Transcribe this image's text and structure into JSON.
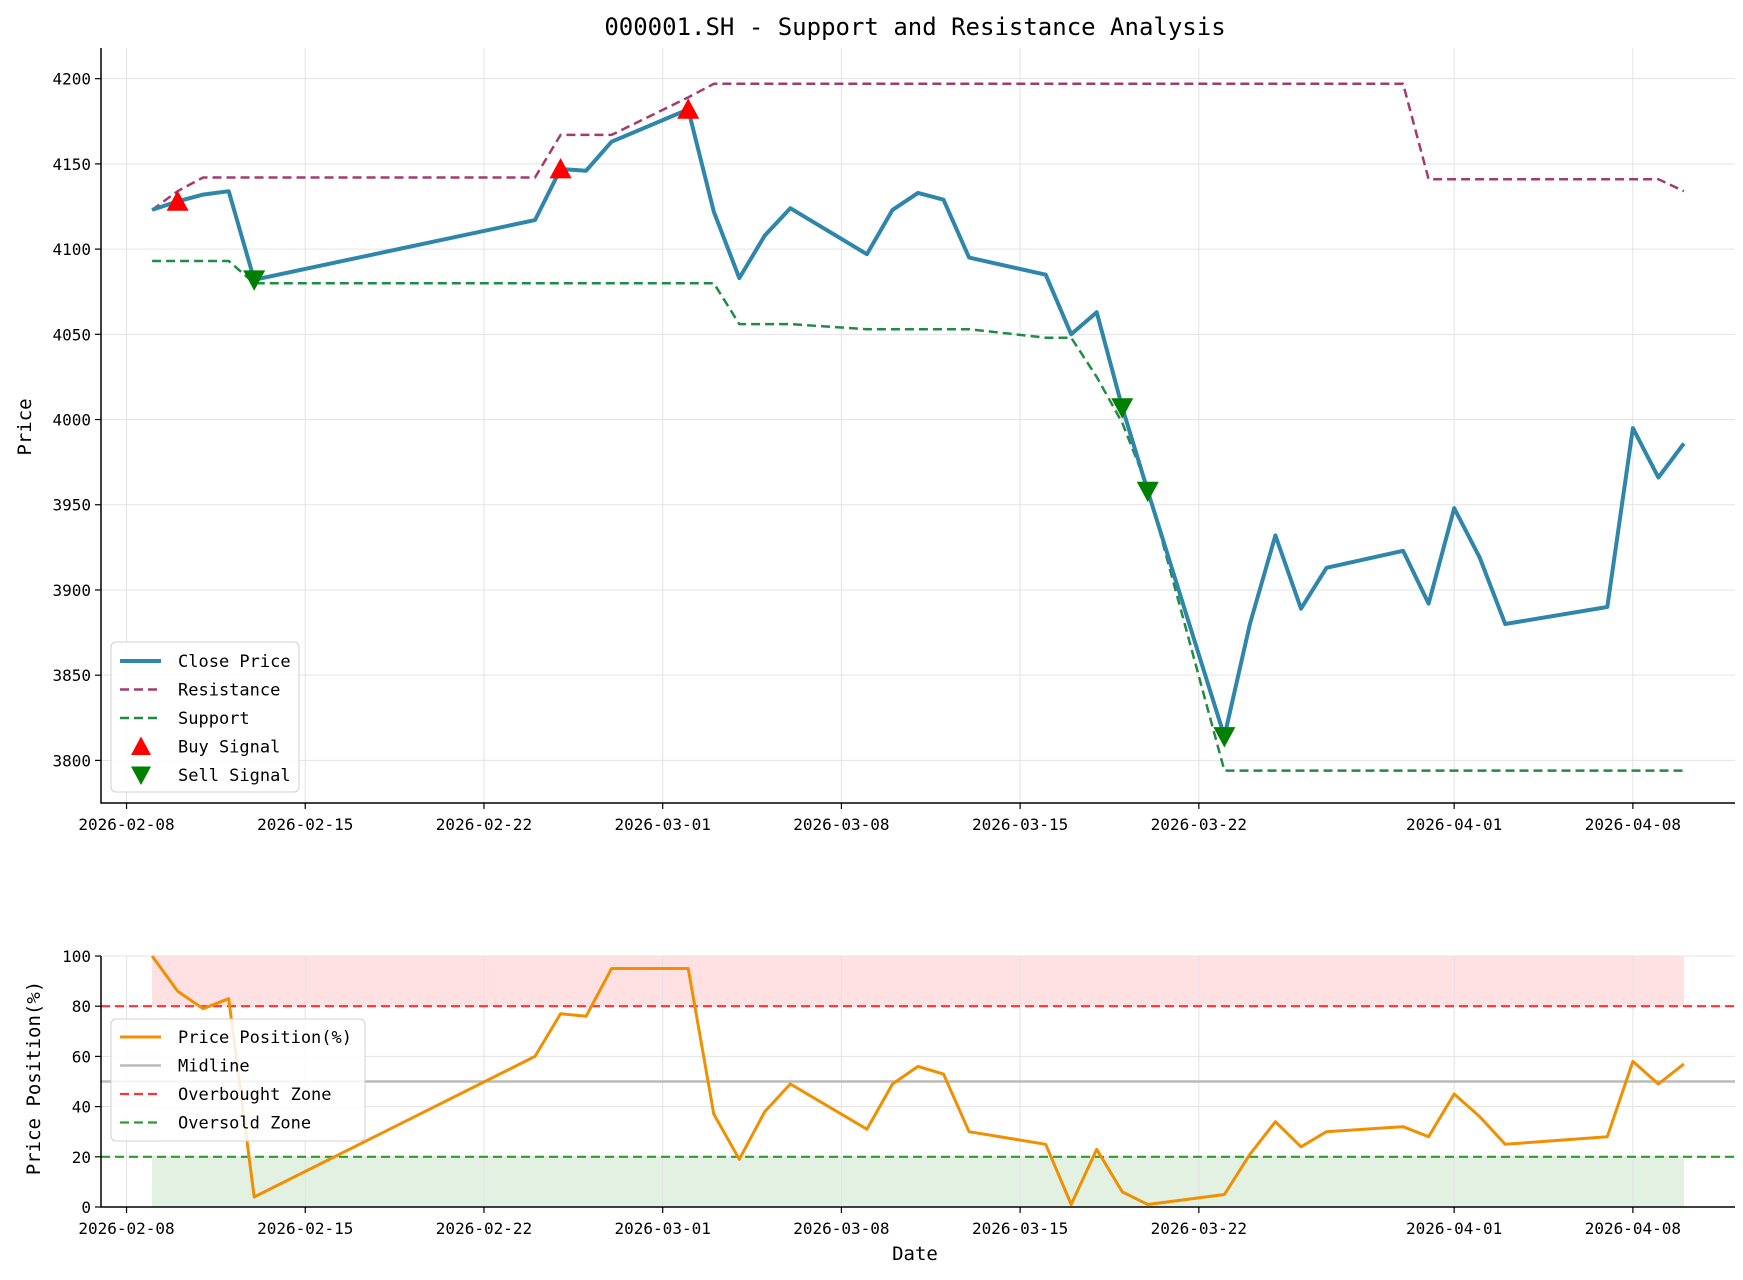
{
  "title": "000001.SH - Support and Resistance Analysis",
  "colors": {
    "close": "#2e86ab",
    "resistance": "#a23b72",
    "support": "#1e8c45",
    "buy": "#ff0000",
    "sell": "#008000",
    "position": "#f18f01",
    "midline": "#bbbbbb",
    "overbought": "#ff3333",
    "oversold": "#2e9b2e",
    "overbought_fill": "#ffe1e3",
    "oversold_fill": "#e3f1e3"
  },
  "chart_data": [
    {
      "type": "line",
      "ylabel": "Price",
      "xlabel": "",
      "ylim": [
        3775,
        4218
      ],
      "xlim": [
        "2026-02-07",
        "2026-04-12"
      ],
      "yticks": [
        3800,
        3850,
        3900,
        3950,
        4000,
        4050,
        4100,
        4150,
        4200
      ],
      "xticks": [
        "2026-02-08",
        "2026-02-15",
        "2026-02-22",
        "2026-03-01",
        "2026-03-08",
        "2026-03-15",
        "2026-03-22",
        "2026-04-01",
        "2026-04-08"
      ],
      "grid": true,
      "legend_position": "lower-left",
      "x": [
        "2026-02-09",
        "2026-02-10",
        "2026-02-11",
        "2026-02-12",
        "2026-02-13",
        "2026-02-24",
        "2026-02-25",
        "2026-02-26",
        "2026-02-27",
        "2026-03-02",
        "2026-03-03",
        "2026-03-04",
        "2026-03-05",
        "2026-03-06",
        "2026-03-09",
        "2026-03-10",
        "2026-03-11",
        "2026-03-12",
        "2026-03-13",
        "2026-03-16",
        "2026-03-17",
        "2026-03-18",
        "2026-03-19",
        "2026-03-20",
        "2026-03-23",
        "2026-03-24",
        "2026-03-25",
        "2026-03-26",
        "2026-03-27",
        "2026-03-30",
        "2026-03-31",
        "2026-04-01",
        "2026-04-02",
        "2026-04-03",
        "2026-04-07",
        "2026-04-08",
        "2026-04-09",
        "2026-04-10"
      ],
      "series": [
        {
          "name": "Close Price",
          "style": "solid",
          "values": [
            4123,
            4128,
            4132,
            4134,
            4082,
            4117,
            4147,
            4146,
            4163,
            4182,
            4122,
            4083,
            4108,
            4124,
            4097,
            4123,
            4133,
            4129,
            4095,
            4085,
            4050,
            4063,
            4007,
            3958,
            3814,
            3880,
            3932,
            3889,
            3913,
            3923,
            3892,
            3948,
            3919,
            3880,
            3890,
            3995,
            3966,
            3986
          ]
        },
        {
          "name": "Resistance",
          "style": "dashed",
          "values": [
            4123,
            4134,
            4142,
            4142,
            4142,
            4142,
            4167,
            4167,
            4167,
            4189,
            4197,
            4197,
            4197,
            4197,
            4197,
            4197,
            4197,
            4197,
            4197,
            4197,
            4197,
            4197,
            4197,
            4197,
            4197,
            4197,
            4197,
            4197,
            4197,
            4197,
            4141,
            4141,
            4141,
            4141,
            4141,
            4141,
            4141,
            4134
          ]
        },
        {
          "name": "Support",
          "style": "dashed",
          "values": [
            4093,
            4093,
            4093,
            4093,
            4080,
            4080,
            4080,
            4080,
            4080,
            4080,
            4080,
            4056,
            4056,
            4056,
            4053,
            4053,
            4053,
            4053,
            4053,
            4048,
            4048,
            4025,
            3998,
            3960,
            3794,
            3794,
            3794,
            3794,
            3794,
            3794,
            3794,
            3794,
            3794,
            3794,
            3794,
            3794,
            3794,
            3794
          ]
        }
      ],
      "markers": [
        {
          "name": "Buy Signal",
          "shape": "triangle-up",
          "points": [
            {
              "x": "2026-02-10",
              "y": 4128
            },
            {
              "x": "2026-02-25",
              "y": 4147
            },
            {
              "x": "2026-03-02",
              "y": 4182
            }
          ]
        },
        {
          "name": "Sell Signal",
          "shape": "triangle-down",
          "points": [
            {
              "x": "2026-02-13",
              "y": 4082
            },
            {
              "x": "2026-03-19",
              "y": 4007
            },
            {
              "x": "2026-03-20",
              "y": 3958
            },
            {
              "x": "2026-03-23",
              "y": 3814
            }
          ]
        }
      ]
    },
    {
      "type": "line",
      "ylabel": "Price Position(%)",
      "xlabel": "Date",
      "ylim": [
        0,
        100
      ],
      "xlim": [
        "2026-02-07",
        "2026-04-12"
      ],
      "yticks": [
        0,
        20,
        40,
        60,
        80,
        100
      ],
      "xticks": [
        "2026-02-08",
        "2026-02-15",
        "2026-02-22",
        "2026-03-01",
        "2026-03-08",
        "2026-03-15",
        "2026-03-22",
        "2026-04-01",
        "2026-04-08"
      ],
      "grid": true,
      "legend_position": "center-left",
      "x": [
        "2026-02-09",
        "2026-02-10",
        "2026-02-11",
        "2026-02-12",
        "2026-02-13",
        "2026-02-24",
        "2026-02-25",
        "2026-02-26",
        "2026-02-27",
        "2026-03-02",
        "2026-03-03",
        "2026-03-04",
        "2026-03-05",
        "2026-03-06",
        "2026-03-09",
        "2026-03-10",
        "2026-03-11",
        "2026-03-12",
        "2026-03-13",
        "2026-03-16",
        "2026-03-17",
        "2026-03-18",
        "2026-03-19",
        "2026-03-20",
        "2026-03-23",
        "2026-03-24",
        "2026-03-25",
        "2026-03-26",
        "2026-03-27",
        "2026-03-30",
        "2026-03-31",
        "2026-04-01",
        "2026-04-02",
        "2026-04-03",
        "2026-04-07",
        "2026-04-08",
        "2026-04-09",
        "2026-04-10"
      ],
      "series": [
        {
          "name": "Price Position(%)",
          "style": "solid",
          "values": [
            100,
            86,
            79,
            83,
            4,
            60,
            77,
            76,
            95,
            95,
            37,
            19,
            38,
            49,
            31,
            49,
            56,
            53,
            30,
            25,
            1,
            23,
            6,
            1,
            5,
            21,
            34,
            24,
            30,
            32,
            28,
            45,
            36,
            25,
            28,
            58,
            49,
            57
          ]
        }
      ],
      "hlines": [
        {
          "name": "Midline",
          "y": 50,
          "style": "solid"
        },
        {
          "name": "Overbought Zone",
          "y": 80,
          "style": "dashed"
        },
        {
          "name": "Oversold Zone",
          "y": 20,
          "style": "dashed"
        }
      ],
      "bands": [
        {
          "from": 80,
          "to": 100,
          "kind": "overbought"
        },
        {
          "from": 0,
          "to": 20,
          "kind": "oversold"
        }
      ]
    }
  ]
}
